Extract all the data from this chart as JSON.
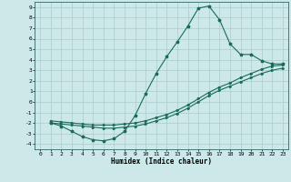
{
  "xlabel": "Humidex (Indice chaleur)",
  "background_color": "#cce8e8",
  "grid_color": "#aacccc",
  "line_color": "#1a6b5a",
  "xlim": [
    -0.5,
    23.5
  ],
  "ylim": [
    -4.5,
    9.5
  ],
  "xticks": [
    0,
    1,
    2,
    3,
    4,
    5,
    6,
    7,
    8,
    9,
    10,
    11,
    12,
    13,
    14,
    15,
    16,
    17,
    18,
    19,
    20,
    21,
    22,
    23
  ],
  "yticks": [
    -4,
    -3,
    -2,
    -1,
    0,
    1,
    2,
    3,
    4,
    5,
    6,
    7,
    8,
    9
  ],
  "curve1_x": [
    1,
    2,
    3,
    4,
    5,
    6,
    7,
    8,
    9,
    10,
    11,
    12,
    13,
    14,
    15,
    16,
    17,
    18,
    19,
    20,
    21,
    22,
    23
  ],
  "curve1_y": [
    -2.0,
    -2.3,
    -2.8,
    -3.3,
    -3.6,
    -3.7,
    -3.5,
    -2.8,
    -1.3,
    0.8,
    2.7,
    4.3,
    5.7,
    7.2,
    8.9,
    9.1,
    7.8,
    5.5,
    4.5,
    4.5,
    3.9,
    3.6,
    3.6
  ],
  "curve2_x": [
    1,
    2,
    3,
    4,
    5,
    6,
    7,
    8,
    9,
    10,
    11,
    12,
    13,
    14,
    15,
    16,
    17,
    18,
    19,
    20,
    21,
    22,
    23
  ],
  "curve2_y": [
    -1.8,
    -1.9,
    -2.0,
    -2.1,
    -2.2,
    -2.2,
    -2.2,
    -2.1,
    -2.0,
    -1.8,
    -1.5,
    -1.2,
    -0.8,
    -0.3,
    0.3,
    0.9,
    1.4,
    1.8,
    2.3,
    2.7,
    3.1,
    3.4,
    3.5
  ],
  "curve3_x": [
    1,
    2,
    3,
    4,
    5,
    6,
    7,
    8,
    9,
    10,
    11,
    12,
    13,
    14,
    15,
    16,
    17,
    18,
    19,
    20,
    21,
    22,
    23
  ],
  "curve3_y": [
    -2.0,
    -2.1,
    -2.2,
    -2.3,
    -2.4,
    -2.5,
    -2.5,
    -2.4,
    -2.3,
    -2.1,
    -1.8,
    -1.5,
    -1.1,
    -0.6,
    0.0,
    0.6,
    1.1,
    1.5,
    1.9,
    2.3,
    2.7,
    3.0,
    3.2
  ]
}
